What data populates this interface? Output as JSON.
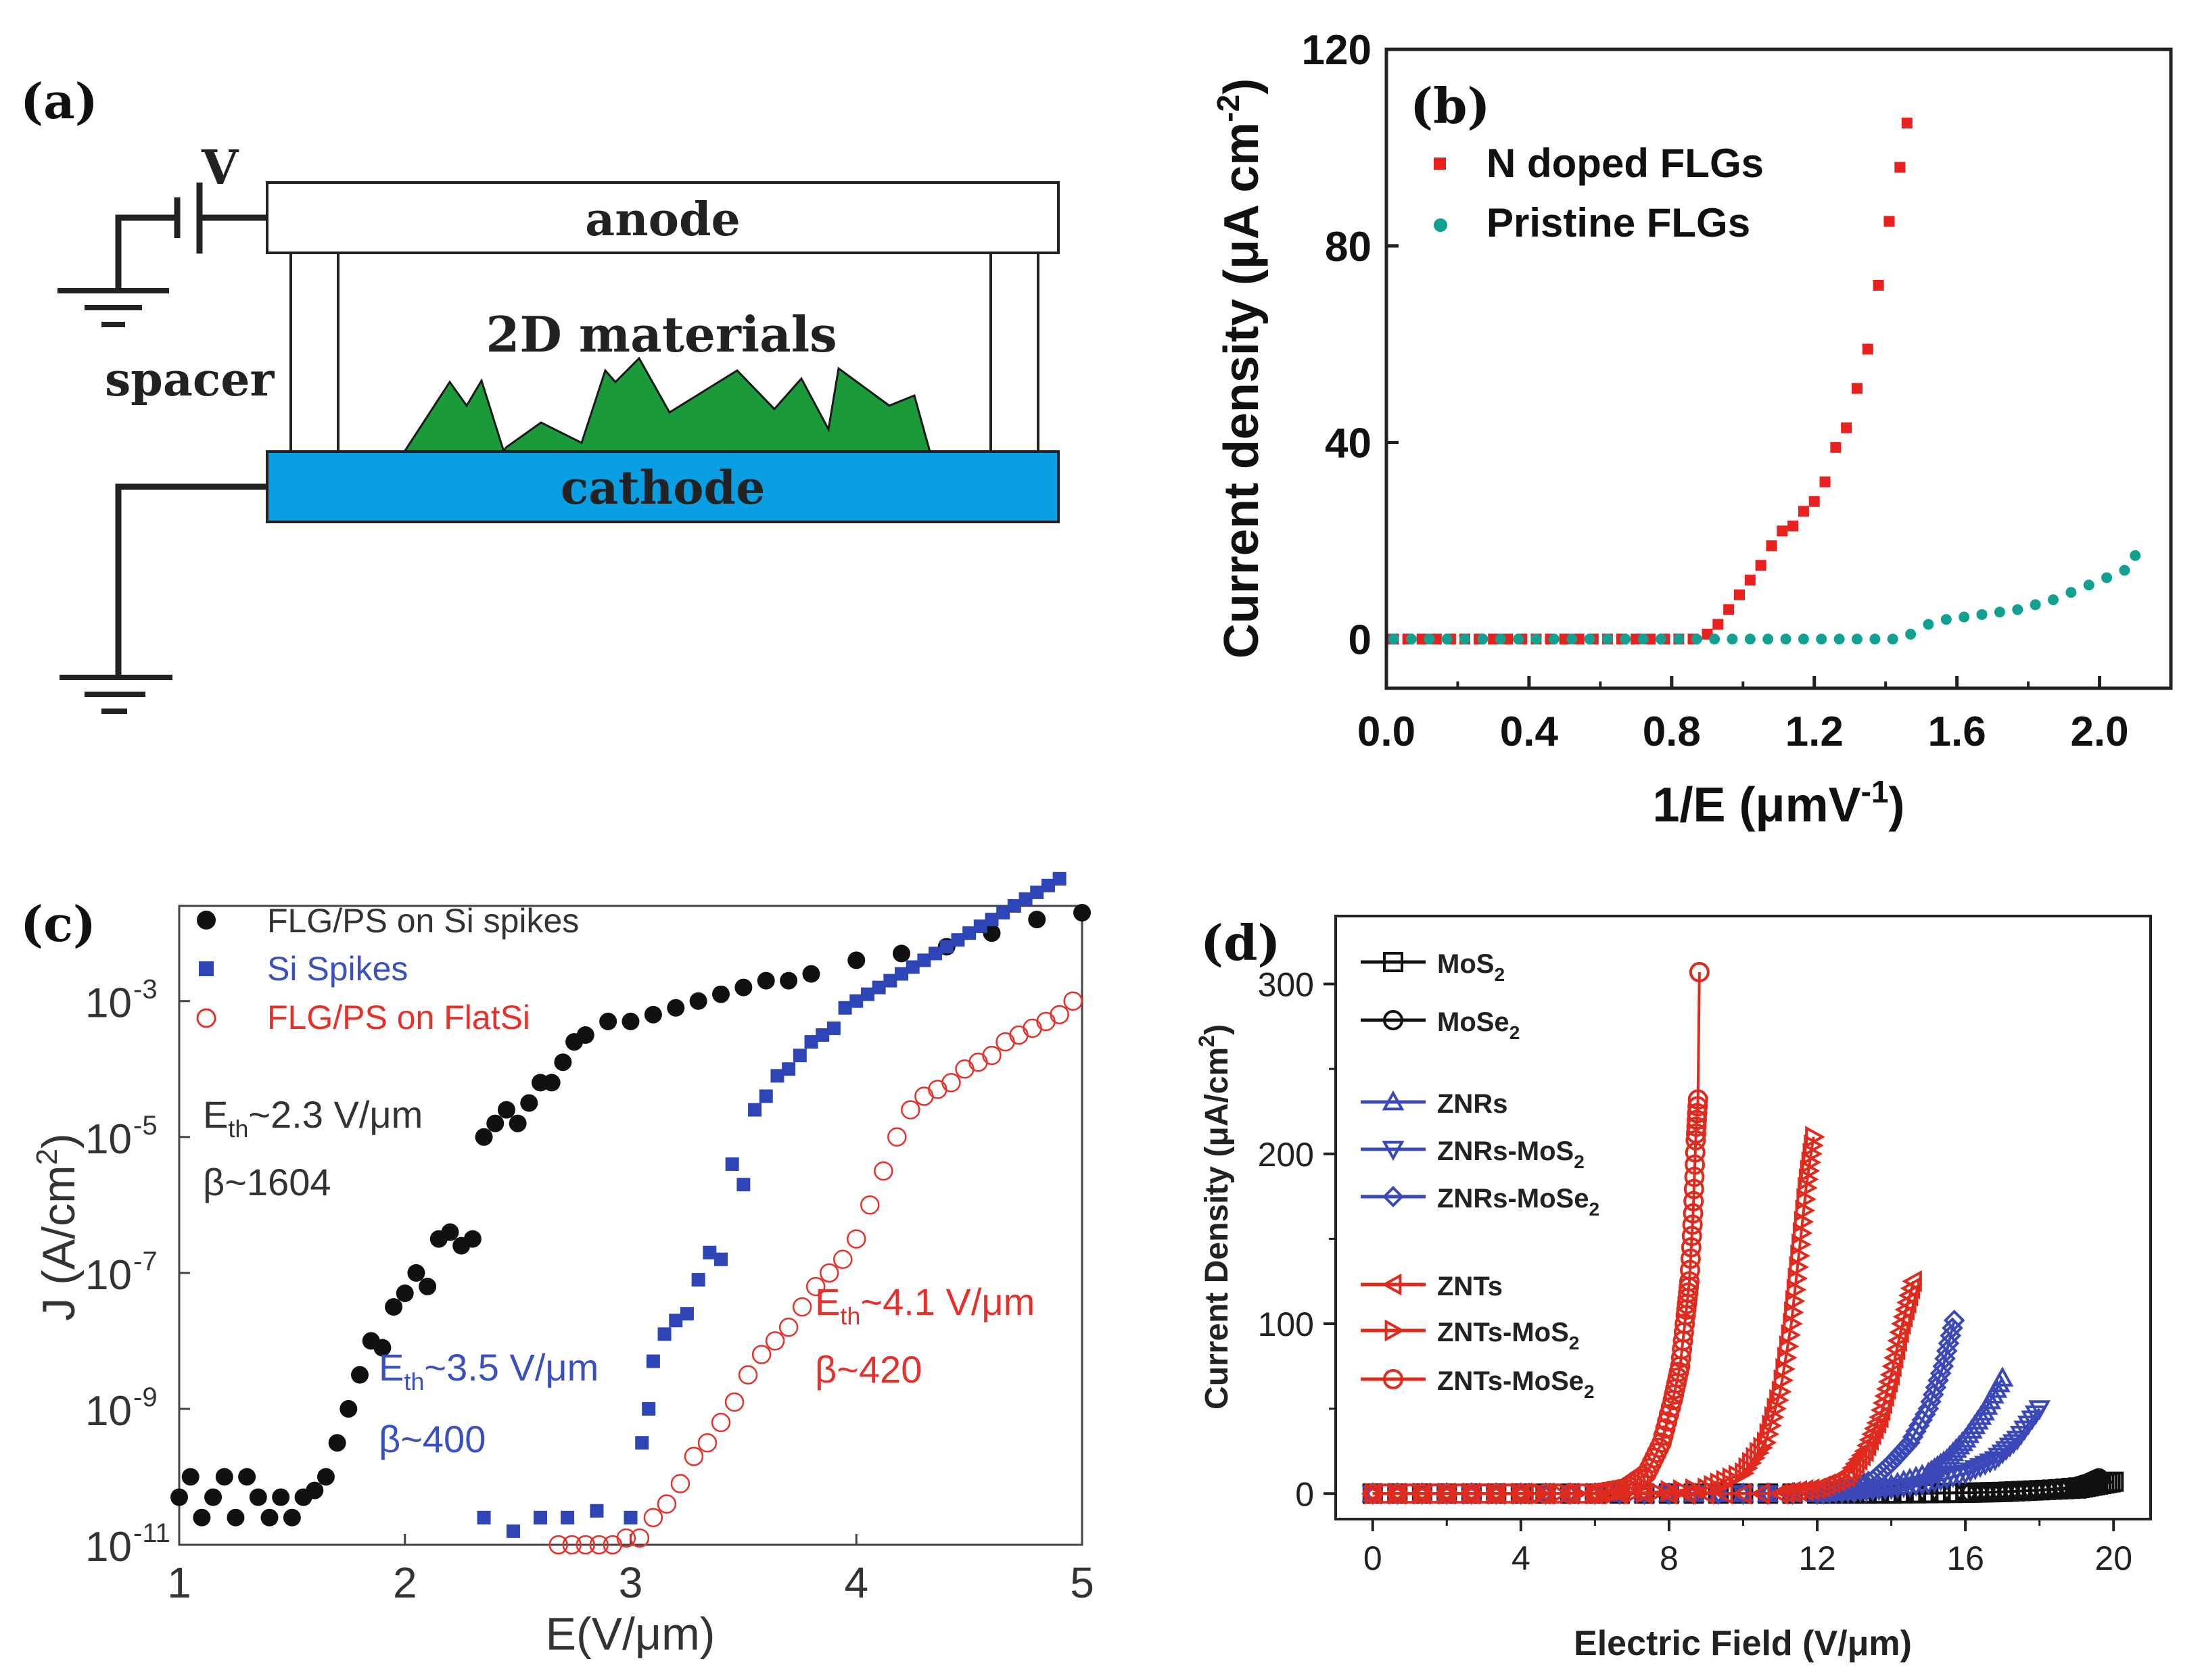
{
  "panel_a": {
    "label": "(a)",
    "voltage": "V",
    "anode": "anode",
    "cathode": "cathode",
    "spacer": "spacer",
    "materials": "2D materials",
    "colors": {
      "cathode": "#0a9ee3",
      "materials": "#1b9a3a"
    }
  },
  "chart_data": [
    {
      "id": "b",
      "type": "scatter",
      "label": "(b)",
      "xlabel": "1/E (μmV",
      "xlabel_sup": "-1",
      "xlabel_end": ")",
      "ylabel": "Current density (μA cm",
      "ylabel_sup": "-2",
      "ylabel_end": ")",
      "xlim": [
        0.0,
        2.2
      ],
      "ylim": [
        -10,
        120
      ],
      "xticks": [
        0.0,
        0.4,
        0.8,
        1.2,
        1.6,
        2.0
      ],
      "xtick_labels": [
        "0.0",
        "0.4",
        "0.8",
        "1.2",
        "1.6",
        "2.0"
      ],
      "yticks": [
        0,
        40,
        80,
        120
      ],
      "ytick_labels": [
        "0",
        "40",
        "80",
        "120"
      ],
      "series": [
        {
          "name": "N doped FLGs",
          "color": "#e8201e",
          "marker": "square",
          "x": [
            0.02,
            0.06,
            0.1,
            0.14,
            0.18,
            0.22,
            0.26,
            0.3,
            0.34,
            0.38,
            0.42,
            0.46,
            0.5,
            0.54,
            0.58,
            0.62,
            0.66,
            0.7,
            0.74,
            0.78,
            0.82,
            0.86,
            0.9,
            0.93,
            0.96,
            0.99,
            1.02,
            1.05,
            1.08,
            1.11,
            1.14,
            1.17,
            1.2,
            1.23,
            1.26,
            1.29,
            1.32,
            1.35,
            1.38,
            1.41,
            1.44,
            1.46
          ],
          "y": [
            0,
            0,
            0,
            0,
            0,
            0,
            0,
            0,
            0,
            0,
            0,
            0,
            0,
            0,
            0,
            0,
            0,
            0,
            0,
            0,
            0,
            0,
            1,
            3,
            6,
            9,
            12,
            15,
            19,
            22,
            23,
            26,
            28,
            32,
            39,
            43,
            51,
            59,
            72,
            85,
            96,
            105
          ]
        },
        {
          "name": "Pristine FLGs",
          "color": "#12a090",
          "marker": "circle",
          "x": [
            0.02,
            0.07,
            0.12,
            0.17,
            0.22,
            0.27,
            0.32,
            0.37,
            0.42,
            0.47,
            0.52,
            0.57,
            0.62,
            0.67,
            0.72,
            0.77,
            0.82,
            0.87,
            0.92,
            0.97,
            1.02,
            1.07,
            1.12,
            1.17,
            1.22,
            1.27,
            1.32,
            1.37,
            1.42,
            1.47,
            1.52,
            1.57,
            1.62,
            1.67,
            1.72,
            1.77,
            1.82,
            1.87,
            1.92,
            1.97,
            2.02,
            2.07,
            2.1
          ],
          "y": [
            0,
            0,
            0,
            0,
            0,
            0,
            0,
            0,
            0,
            0,
            0,
            0,
            0,
            0,
            0,
            0,
            0,
            0,
            0,
            0,
            0,
            0,
            0,
            0,
            0,
            0,
            0,
            0,
            0,
            1,
            3,
            4,
            4.5,
            5,
            5.5,
            6,
            7,
            8,
            9.5,
            11,
            12.5,
            14,
            17
          ]
        }
      ]
    },
    {
      "id": "c",
      "type": "scatter",
      "label": "(c)",
      "xlabel": "E(V/μm)",
      "ylabel": "J (A/cm",
      "ylabel_sup": "2",
      "ylabel_end": ")",
      "yscale": "log",
      "xlim": [
        1,
        5
      ],
      "ylim_log10": [
        -11,
        -1.6
      ],
      "xticks": [
        1,
        2,
        3,
        4,
        5
      ],
      "xtick_labels": [
        "1",
        "2",
        "3",
        "4",
        "5"
      ],
      "yticks_log10": [
        -11,
        -9,
        -7,
        -5,
        -3
      ],
      "ytick_labels": [
        "10",
        "10",
        "10",
        "10",
        "10"
      ],
      "ytick_exponents": [
        "-11",
        "-9",
        "-7",
        "-5",
        "-3"
      ],
      "annotations": [
        {
          "text": "E",
          "sub": "th",
          "rest": "~2.3 V/μm",
          "beta": "β~1604",
          "color": "#333333"
        },
        {
          "text": "E",
          "sub": "th",
          "rest": "~3.5 V/μm",
          "beta": "β~400",
          "color": "#3a50c0"
        },
        {
          "text": "E",
          "sub": "th",
          "rest": "~4.1 V/μm",
          "beta": "β~420",
          "color": "#e8302a"
        }
      ],
      "series": [
        {
          "name": "FLG/PS on Si spikes",
          "color": "#111111",
          "marker": "filled-circle",
          "x": [
            1.0,
            1.05,
            1.1,
            1.15,
            1.2,
            1.25,
            1.3,
            1.35,
            1.4,
            1.45,
            1.5,
            1.55,
            1.6,
            1.65,
            1.7,
            1.75,
            1.8,
            1.85,
            1.9,
            1.95,
            2.0,
            2.05,
            2.1,
            2.15,
            2.2,
            2.25,
            2.3,
            2.35,
            2.4,
            2.45,
            2.5,
            2.55,
            2.6,
            2.65,
            2.7,
            2.75,
            2.8,
            2.9,
            3.0,
            3.1,
            3.2,
            3.3,
            3.4,
            3.5,
            3.6,
            3.7,
            3.8,
            4.0,
            4.2,
            4.4,
            4.6,
            4.8,
            5.0
          ],
          "log10y": [
            -10.3,
            -10.0,
            -10.6,
            -10.3,
            -10.0,
            -10.6,
            -10.0,
            -10.3,
            -10.6,
            -10.3,
            -10.6,
            -10.3,
            -10.2,
            -10.0,
            -9.5,
            -9.0,
            -8.5,
            -8.0,
            -8.1,
            -7.5,
            -7.3,
            -7.0,
            -7.2,
            -6.5,
            -6.4,
            -6.6,
            -6.5,
            -5.0,
            -4.8,
            -4.6,
            -4.8,
            -4.5,
            -4.2,
            -4.2,
            -3.9,
            -3.6,
            -3.5,
            -3.3,
            -3.3,
            -3.2,
            -3.1,
            -3.0,
            -2.9,
            -2.8,
            -2.7,
            -2.7,
            -2.6,
            -2.4,
            -2.3,
            -2.2,
            -2.0,
            -1.8,
            -1.7
          ]
        },
        {
          "name": "Si Spikes",
          "color": "#2e45b8",
          "marker": "filled-square",
          "x": [
            2.35,
            2.48,
            2.6,
            2.72,
            2.85,
            3.0,
            3.05,
            3.08,
            3.1,
            3.15,
            3.2,
            3.25,
            3.3,
            3.35,
            3.4,
            3.45,
            3.5,
            3.55,
            3.6,
            3.65,
            3.7,
            3.75,
            3.8,
            3.85,
            3.9,
            3.95,
            4.0,
            4.05,
            4.1,
            4.15,
            4.2,
            4.25,
            4.3,
            4.35,
            4.4,
            4.45,
            4.5,
            4.55,
            4.6,
            4.65,
            4.7,
            4.75,
            4.8,
            4.85,
            4.9
          ],
          "log10y": [
            -10.6,
            -10.8,
            -10.6,
            -10.6,
            -10.5,
            -10.6,
            -9.5,
            -9.0,
            -8.3,
            -7.9,
            -7.7,
            -7.6,
            -7.1,
            -6.7,
            -6.8,
            -5.4,
            -5.7,
            -4.6,
            -4.4,
            -4.1,
            -4.0,
            -3.8,
            -3.6,
            -3.5,
            -3.4,
            -3.1,
            -3.0,
            -2.9,
            -2.8,
            -2.7,
            -2.6,
            -2.5,
            -2.4,
            -2.3,
            -2.2,
            -2.1,
            -2.0,
            -1.9,
            -1.8,
            -1.7,
            -1.6,
            -1.5,
            -1.4,
            -1.3,
            -1.2
          ]
        },
        {
          "name": "FLG/PS on FlatSi",
          "color": "#e8302a",
          "marker": "open-circle",
          "x": [
            2.68,
            2.74,
            2.8,
            2.86,
            2.92,
            2.98,
            3.04,
            3.1,
            3.16,
            3.22,
            3.28,
            3.34,
            3.4,
            3.46,
            3.52,
            3.58,
            3.64,
            3.7,
            3.76,
            3.82,
            3.88,
            3.94,
            4.0,
            4.06,
            4.12,
            4.18,
            4.24,
            4.3,
            4.36,
            4.42,
            4.48,
            4.54,
            4.6,
            4.66,
            4.72,
            4.78,
            4.84,
            4.9,
            4.96
          ],
          "log10y": [
            -11.0,
            -11.0,
            -11.0,
            -11.0,
            -11.0,
            -10.9,
            -10.9,
            -10.6,
            -10.4,
            -10.1,
            -9.7,
            -9.5,
            -9.2,
            -8.9,
            -8.5,
            -8.2,
            -8.0,
            -7.8,
            -7.5,
            -7.2,
            -7.0,
            -6.8,
            -6.5,
            -6.0,
            -5.5,
            -5.0,
            -4.6,
            -4.4,
            -4.3,
            -4.2,
            -4.0,
            -3.9,
            -3.8,
            -3.6,
            -3.5,
            -3.4,
            -3.3,
            -3.2,
            -3.0
          ]
        }
      ]
    },
    {
      "id": "d",
      "type": "line",
      "label": "(d)",
      "xlabel": "Electric Field (V/μm)",
      "ylabel": "Current Density (μA/cm",
      "ylabel_sup": "2",
      "ylabel_end": ")",
      "xlim": [
        -1,
        21
      ],
      "ylim": [
        -15,
        340
      ],
      "xticks": [
        0,
        4,
        8,
        12,
        16,
        20
      ],
      "xtick_labels": [
        "0",
        "4",
        "8",
        "12",
        "16",
        "20"
      ],
      "yticks": [
        0,
        100,
        200,
        300
      ],
      "ytick_labels": [
        "0",
        "100",
        "200",
        "300"
      ],
      "series": [
        {
          "name": "MoS",
          "sub": "2",
          "color": "#111111",
          "marker": "square",
          "x": [
            0,
            4,
            8,
            12,
            14,
            16,
            17,
            18,
            19,
            19.5,
            20
          ],
          "y": [
            0,
            0,
            0,
            0,
            0,
            0.5,
            1,
            2,
            3,
            5,
            7
          ]
        },
        {
          "name": "MoSe",
          "sub": "2",
          "color": "#111111",
          "marker": "circle",
          "x": [
            0,
            4,
            8,
            12,
            14,
            16,
            17,
            18,
            19,
            19.3,
            19.6
          ],
          "y": [
            0,
            0,
            0,
            0,
            0,
            0.5,
            1,
            2,
            4,
            6,
            9
          ]
        },
        {
          "name": "ZNRs",
          "sub": "",
          "color": "#3a48b8",
          "marker": "triangle-up",
          "x": [
            0,
            4,
            8,
            12,
            13,
            14,
            15,
            15.5,
            16,
            16.5,
            17
          ],
          "y": [
            0,
            0,
            0,
            0,
            2,
            5,
            12,
            20,
            32,
            48,
            68
          ]
        },
        {
          "name": "ZNRs-MoS",
          "sub": "2",
          "color": "#3a48b8",
          "marker": "triangle-down",
          "x": [
            0,
            4,
            8,
            12,
            13,
            14,
            15,
            16,
            16.8,
            17.4,
            18
          ],
          "y": [
            0,
            0,
            0,
            0,
            1,
            3,
            6,
            12,
            20,
            32,
            50
          ]
        },
        {
          "name": "ZNRs-MoSe",
          "sub": "2",
          "color": "#3a48b8",
          "marker": "diamond",
          "x": [
            0,
            4,
            8,
            12,
            12.8,
            13.5,
            14,
            14.5,
            15,
            15.4,
            15.7
          ],
          "y": [
            0,
            0,
            0,
            0,
            3,
            8,
            18,
            30,
            50,
            75,
            102
          ]
        },
        {
          "name": "ZNTs",
          "sub": "",
          "color": "#e02a1e",
          "marker": "triangle-left",
          "x": [
            0,
            4,
            8,
            11,
            12,
            12.8,
            13.3,
            13.7,
            14,
            14.3,
            14.6
          ],
          "y": [
            0,
            0,
            0,
            0,
            3,
            10,
            25,
            45,
            70,
            100,
            125
          ]
        },
        {
          "name": "ZNTs-MoS",
          "sub": "2",
          "color": "#e02a1e",
          "marker": "triangle-right",
          "x": [
            0,
            4,
            7,
            9,
            10,
            10.6,
            11,
            11.3,
            11.5,
            11.7,
            11.9
          ],
          "y": [
            0,
            0,
            0,
            3,
            12,
            30,
            60,
            100,
            140,
            180,
            210
          ]
        },
        {
          "name": "ZNTs-MoSe",
          "sub": "2",
          "color": "#e02a1e",
          "marker": "circle",
          "x": [
            0,
            2,
            4,
            6,
            6.8,
            7.4,
            7.8,
            8.1,
            8.3,
            8.45,
            8.55,
            8.65,
            8.72,
            8.78
          ],
          "y": [
            0,
            0,
            0,
            0,
            3,
            12,
            30,
            55,
            75,
            105,
            125,
            165,
            208,
            232
          ]
        },
        {
          "name": "ZNTs-MoSe",
          "sub": "2",
          "color": "#e02a1e",
          "marker": "circle",
          "x": [
            8.82
          ],
          "y": [
            307
          ]
        }
      ]
    }
  ]
}
